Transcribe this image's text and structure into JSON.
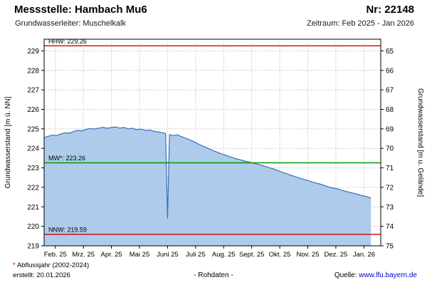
{
  "header": {
    "station_label": "Messstelle: Hambach Mu6",
    "number_label": "Nr: 22148",
    "aquifer_label": "Grundwasserleiter: Muschelkalk",
    "period_label": "Zeitraum: Feb 2025 - Jan 2026"
  },
  "footer": {
    "footnote_marker": "*",
    "footnote_text": " Abflussjahr (2002-2024)",
    "created_label": "erstellt: 20.01.2026",
    "data_type_label": "- Rohdaten -",
    "source_label": "Quelle: ",
    "source_url": "www.lfu.bayern.de"
  },
  "chart_data": {
    "type": "area",
    "title": "",
    "ylabel_left": "Grundwasserstand [m ü. NN]",
    "ylabel_right": "Grundwasserstand [m u. Gelände]",
    "ylim_left": [
      219,
      229.6
    ],
    "x_span": 12,
    "x_tick_offset": 0.4,
    "grid": true,
    "x_tick_labels": [
      "Feb. 25",
      "Mrz. 25",
      "Apr. 25",
      "Mai 25",
      "Juni 25",
      "Juli 25",
      "Aug. 25",
      "Sept. 25",
      "Okt. 25",
      "Nov. 25",
      "Dez. 25",
      "Jan. 26"
    ],
    "y_ticks_left": [
      219,
      220,
      221,
      222,
      223,
      224,
      225,
      226,
      227,
      228,
      229
    ],
    "y_ticks_right": [
      75,
      74,
      73,
      72,
      71,
      70,
      69,
      68,
      67,
      66,
      65
    ],
    "reference_lines": [
      {
        "name": "HHW",
        "label": "HHW: 229.26",
        "value": 229.26,
        "color": "#d40000"
      },
      {
        "name": "MW",
        "label": "MW*: 223.26",
        "value": 223.26,
        "color": "#009900"
      },
      {
        "name": "NNW",
        "label": "NNW: 219.59",
        "value": 219.59,
        "color": "#d40000"
      }
    ],
    "series": [
      {
        "name": "Rohdaten Grundwasserstand",
        "line_color": "#3a6fb5",
        "fill_color": "#aecbeb",
        "x": [
          0.0,
          0.15,
          0.3,
          0.45,
          0.6,
          0.75,
          0.9,
          1.05,
          1.2,
          1.35,
          1.5,
          1.65,
          1.8,
          1.95,
          2.1,
          2.25,
          2.4,
          2.55,
          2.7,
          2.85,
          3.0,
          3.15,
          3.3,
          3.45,
          3.6,
          3.75,
          3.9,
          4.05,
          4.2,
          4.33,
          4.4,
          4.47,
          4.6,
          4.75,
          4.9,
          5.05,
          5.2,
          5.35,
          5.5,
          5.65,
          5.8,
          5.95,
          6.1,
          6.25,
          6.4,
          6.55,
          6.7,
          6.85,
          7.0,
          7.15,
          7.3,
          7.45,
          7.6,
          7.75,
          7.9,
          8.05,
          8.2,
          8.35,
          8.5,
          8.65,
          8.8,
          8.95,
          9.1,
          9.25,
          9.4,
          9.55,
          9.7,
          9.85,
          10.0,
          10.15,
          10.3,
          10.45,
          10.6,
          10.75,
          10.9,
          11.05,
          11.2,
          11.35,
          11.5,
          11.65
        ],
        "values": [
          224.55,
          224.62,
          224.68,
          224.66,
          224.74,
          224.8,
          224.78,
          224.86,
          224.92,
          224.9,
          224.98,
          225.02,
          224.99,
          225.04,
          225.08,
          225.03,
          225.07,
          225.1,
          225.04,
          225.07,
          225.0,
          225.03,
          224.96,
          224.99,
          224.92,
          224.94,
          224.88,
          224.85,
          224.8,
          224.76,
          220.4,
          224.7,
          224.66,
          224.69,
          224.6,
          224.52,
          224.43,
          224.33,
          224.22,
          224.12,
          224.03,
          223.93,
          223.84,
          223.76,
          223.68,
          223.61,
          223.53,
          223.46,
          223.41,
          223.35,
          223.3,
          223.24,
          223.19,
          223.13,
          223.07,
          223.0,
          222.93,
          222.85,
          222.77,
          222.7,
          222.62,
          222.55,
          222.48,
          222.41,
          222.35,
          222.28,
          222.22,
          222.16,
          222.09,
          222.02,
          221.96,
          221.93,
          221.86,
          221.8,
          221.74,
          221.69,
          221.63,
          221.57,
          221.52,
          221.45
        ]
      }
    ]
  }
}
